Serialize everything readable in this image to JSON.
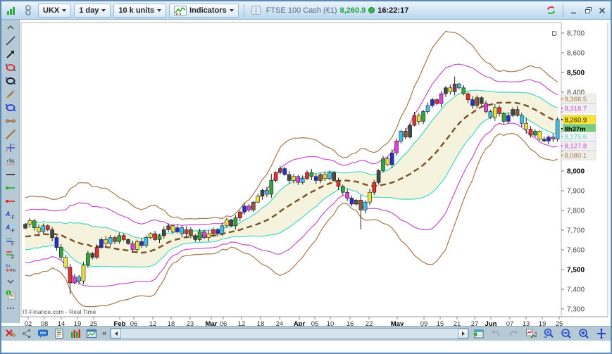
{
  "toolbar": {
    "symbol": "UKX",
    "timeframe": "1 day",
    "units": "10 k units",
    "indicators_label": "Indicators",
    "instrument": "FTSE 100 Cash (€1)",
    "last_price": "8,260.9",
    "time": "16:22:17"
  },
  "left_toolbar": {
    "tools": [
      "collapse-up",
      "trend-line",
      "arrow",
      "ellipse-red",
      "ellipse-black",
      "segment",
      "ellipse-blue",
      "dumbbell",
      "oblique-line",
      "pitchfork",
      "percent-move",
      "horizontal-line",
      "alert-green",
      "alert-red",
      "text-note-a",
      "text-note-b",
      "fibonacci-a",
      "fibonacci-b",
      "numbers",
      "more-down",
      "orders-note",
      "ellipsis"
    ]
  },
  "bottom_toolbar": {
    "collapse_label": "«",
    "tools_left": [
      "drawing-palette",
      "share",
      "chat",
      "news-report",
      "market-quotes",
      "detach-window"
    ],
    "tools_right": [
      "calendar",
      "undo",
      "redo",
      "chart-settings",
      "zoom-custom",
      "zoom-out",
      "zoom-in",
      "crosshair"
    ]
  },
  "chart": {
    "period_badge": "D",
    "watermark": "IT-Finance.com - Real Time",
    "price_axis_ticks": [
      {
        "label": "8,700",
        "value": 8700,
        "bold": false
      },
      {
        "label": "8,600",
        "value": 8600,
        "bold": false
      },
      {
        "label": "8,500",
        "value": 8500,
        "bold": true
      },
      {
        "label": "8,400",
        "value": 8400,
        "bold": false
      },
      {
        "label": "8,000",
        "value": 8000,
        "bold": true
      },
      {
        "label": "7,900",
        "value": 7900,
        "bold": false
      },
      {
        "label": "7,800",
        "value": 7800,
        "bold": false
      },
      {
        "label": "7,700",
        "value": 7700,
        "bold": false
      },
      {
        "label": "7,600",
        "value": 7600,
        "bold": false
      },
      {
        "label": "7,500",
        "value": 7500,
        "bold": true
      },
      {
        "label": "7,400",
        "value": 7400,
        "bold": false
      },
      {
        "label": "7,300",
        "value": 7300,
        "bold": false
      }
    ],
    "axis_labels": [
      {
        "label": "8,366.5",
        "value": 8366.5,
        "fg": "#a4784e",
        "bg": "#f1efe9",
        "bold": false,
        "band": "outer-upper"
      },
      {
        "label": "8,318.7",
        "value": 8318.7,
        "fg": "#c44ecb",
        "bg": "#f2eff2",
        "bold": false,
        "band": "mid-upper"
      },
      {
        "label": "8,260.9",
        "value": 8260.9,
        "fg": "#1a1a00",
        "bg": "#f5e33a",
        "bold": false,
        "band": "last-price"
      },
      {
        "label": "8h37m",
        "value": null,
        "fg": "#000000",
        "bg": "#79cc79",
        "bold": true,
        "band": "session-countdown"
      },
      {
        "label": "8,175.6",
        "value": 8175.6,
        "fg": "#5ad2c3",
        "bg": "#eef4f2",
        "bold": false,
        "band": "inner-lower"
      },
      {
        "label": "8,127.8",
        "value": 8127.8,
        "fg": "#c44ecb",
        "bg": "#f2eff2",
        "bold": false,
        "band": "mid-lower"
      },
      {
        "label": "8,080.1",
        "value": 8080.1,
        "fg": "#a4784e",
        "bg": "#f1efe9",
        "bold": false,
        "band": "outer-lower"
      }
    ]
  },
  "chart_data": {
    "type": "candlestick",
    "symbol": "FTSE 100 Cash (€1)",
    "indicator": "triple standard-deviation envelope (±1σ, ±2σ, ±3σ) around dashed 20-period average",
    "last_price": 8260.9,
    "session_time_remaining": "8h37m",
    "ylim": [
      7300,
      8700
    ],
    "band_values_at_last_bar": {
      "outer_upper": 8366.5,
      "mid_upper": 8318.7,
      "last_price": 8260.9,
      "inner_lower": 8175.6,
      "mid_lower": 8127.8,
      "outer_lower": 8080.1
    },
    "x_ticks": [
      [
        "02",
        38,
        0
      ],
      [
        "08",
        61,
        0
      ],
      [
        "14",
        85,
        0
      ],
      [
        "19",
        108,
        0
      ],
      [
        "25",
        131,
        0
      ],
      [
        "Feb",
        168,
        1
      ],
      [
        "06",
        188,
        0
      ],
      [
        "12",
        215,
        0
      ],
      [
        "18",
        241,
        0
      ],
      [
        "23",
        268,
        0
      ],
      [
        "Mar",
        298,
        1
      ],
      [
        "06",
        315,
        0
      ],
      [
        "12",
        341,
        0
      ],
      [
        "18",
        368,
        0
      ],
      [
        "24",
        395,
        0
      ],
      [
        "Apr",
        423,
        1
      ],
      [
        "05",
        445,
        0
      ],
      [
        "10",
        467,
        0
      ],
      [
        "16",
        495,
        0
      ],
      [
        "22",
        522,
        0
      ],
      [
        "May",
        562,
        1
      ],
      [
        "09",
        600,
        0
      ],
      [
        "15",
        623,
        0
      ],
      [
        "21",
        647,
        0
      ],
      [
        "27",
        672,
        0
      ],
      [
        "Jun",
        695,
        1
      ],
      [
        "07",
        722,
        0
      ],
      [
        "13",
        745,
        0
      ],
      [
        "19",
        768,
        0
      ],
      [
        "25",
        792,
        0
      ]
    ],
    "closes": [
      7730,
      7748,
      7712,
      7692,
      7722,
      7702,
      7662,
      7612,
      7562,
      7512,
      7432,
      7462,
      7442,
      7522,
      7582,
      7562,
      7612,
      7652,
      7632,
      7662,
      7642,
      7672,
      7652,
      7632,
      7602,
      7642,
      7622,
      7662,
      7682,
      7652,
      7672,
      7702,
      7722,
      7692,
      7712,
      7682,
      7702,
      7672,
      7652,
      7692,
      7662,
      7682,
      7702,
      7682,
      7722,
      7752,
      7722,
      7762,
      7792,
      7822,
      7802,
      7842,
      7872,
      7902,
      7882,
      7952,
      7992,
      8012,
      7982,
      7952,
      7972,
      7942,
      7962,
      7992,
      7972,
      7952,
      7982,
      7962,
      7992,
      7952,
      7922,
      7892,
      7862,
      7832,
      7852,
      7802,
      7842,
      7892,
      7942,
      8002,
      8062,
      8032,
      8092,
      8152,
      8202,
      8172,
      8232,
      8282,
      8252,
      8302,
      8332,
      8362,
      8342,
      8392,
      8422,
      8402,
      8442,
      8422,
      8392,
      8362,
      8332,
      8372,
      8342,
      8302,
      8272,
      8322,
      8292,
      8252,
      8282,
      8312,
      8282,
      8242,
      8212,
      8182,
      8202,
      8162,
      8152,
      8172,
      8162,
      8260.9
    ],
    "pre_closes": [
      7560,
      7700,
      7590,
      7720,
      7600,
      7740,
      7580,
      7700,
      7620,
      7760,
      7600,
      7720,
      7560,
      7680,
      7620,
      7750,
      7590,
      7710,
      7630,
      7740
    ],
    "colors": "kygycrkbgyrmcygkrbycwgrkmybcyrgkdybcrwkgmyrbcykgrbmwykcgrdbkymcrgbwyckrgmbdwcyrkgybmcwkrygcbrmkydcgrbwkmcyrgbkwcyrgykbmc",
    "palette": {
      "k": "#3f4a42",
      "y": "#f0e13a",
      "g": "#2fa83a",
      "c": "#3fc1ee",
      "r": "#e03030",
      "b": "#2430c8",
      "m": "#e03fe0",
      "w": "#8a5a3a",
      "d": "#7c4048"
    },
    "wick_overrides": {
      "10": [
        10,
        48
      ],
      "55": [
        22,
        6
      ],
      "75": [
        12,
        92
      ],
      "96": [
        26,
        6
      ],
      "112": [
        20,
        8
      ]
    },
    "band_colors": {
      "outer": "#a4784e",
      "mid": "#c44ecb",
      "inner": "#46d6c2",
      "center": "#7a4e28",
      "fill": "#f5f3de"
    }
  }
}
